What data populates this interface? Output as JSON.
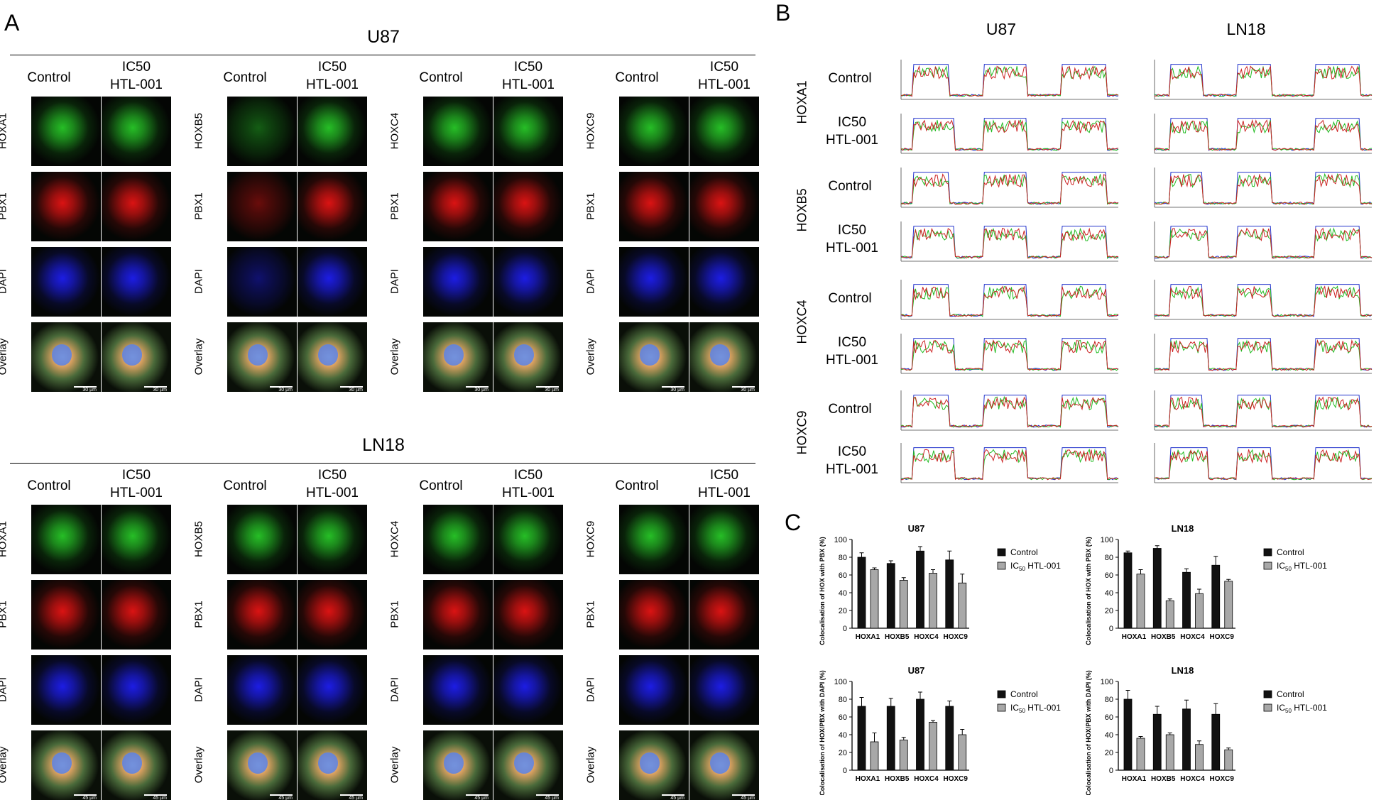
{
  "panel_a": {
    "letter": "A",
    "blocks": [
      {
        "title": "U87",
        "scale": "30 µm"
      },
      {
        "title": "LN18",
        "scale": "45 µm"
      }
    ],
    "col_control": "Control",
    "col_treated_line1": "IC50",
    "col_treated_line2": "HTL-001",
    "genes": [
      "HOXA1",
      "HOXB5",
      "HOXC4",
      "HOXC9"
    ],
    "rows": [
      "PBX1",
      "DAPI",
      "Overlay"
    ]
  },
  "panel_b": {
    "letter": "B",
    "cells": [
      "U87",
      "LN18"
    ],
    "genes": [
      "HOXA1",
      "HOXB5",
      "HOXC4",
      "HOXC9"
    ],
    "control": "Control",
    "treated_line1": "IC50",
    "treated_line2": "HTL-001"
  },
  "panel_c": {
    "letter": "C",
    "legend_control": "Control",
    "legend_ic": "IC",
    "legend_sub": "50",
    "legend_rest": " HTL-001",
    "colors": {
      "control": "#111111",
      "ic50": "#a8a8a8"
    }
  },
  "chart_data": [
    {
      "type": "bar",
      "title": "U87",
      "ylabel": "Colocalisation of HOX with PBX (%)",
      "ylim": [
        0,
        100
      ],
      "ticks": [
        0,
        20,
        40,
        60,
        80,
        100
      ],
      "categories": [
        "HOXA1",
        "HOXB5",
        "HOXC4",
        "HOXC9"
      ],
      "series": [
        {
          "name": "Control",
          "values": [
            80,
            73,
            87,
            77
          ],
          "errors": [
            5,
            3,
            5,
            10
          ]
        },
        {
          "name": "IC50 HTL-001",
          "values": [
            66,
            54,
            62,
            51
          ],
          "errors": [
            2,
            3,
            4,
            10
          ]
        }
      ]
    },
    {
      "type": "bar",
      "title": "LN18",
      "ylabel": "Colocalisation of HOX with PBX (%)",
      "ylim": [
        0,
        100
      ],
      "ticks": [
        0,
        20,
        40,
        60,
        80,
        100
      ],
      "categories": [
        "HOXA1",
        "HOXB5",
        "HOXC4",
        "HOXC9"
      ],
      "series": [
        {
          "name": "Control",
          "values": [
            85,
            90,
            63,
            71
          ],
          "errors": [
            2,
            3,
            4,
            10
          ]
        },
        {
          "name": "IC50 HTL-001",
          "values": [
            61,
            31,
            39,
            53
          ],
          "errors": [
            5,
            2,
            5,
            2
          ]
        }
      ]
    },
    {
      "type": "bar",
      "title": "U87",
      "ylabel": "Colocalisation of HOX/PBX with DAPI (%)",
      "ylim": [
        0,
        100
      ],
      "ticks": [
        0,
        20,
        40,
        60,
        80,
        100
      ],
      "categories": [
        "HOXA1",
        "HOXB5",
        "HOXC4",
        "HOXC9"
      ],
      "series": [
        {
          "name": "Control",
          "values": [
            72,
            72,
            80,
            72
          ],
          "errors": [
            10,
            9,
            8,
            6
          ]
        },
        {
          "name": "IC50 HTL-001",
          "values": [
            32,
            34,
            54,
            40
          ],
          "errors": [
            10,
            3,
            2,
            6
          ]
        }
      ]
    },
    {
      "type": "bar",
      "title": "LN18",
      "ylabel": "Colocalisation of HOX/PBX with DAPI (%)",
      "ylim": [
        0,
        100
      ],
      "ticks": [
        0,
        20,
        40,
        60,
        80,
        100
      ],
      "categories": [
        "HOXA1",
        "HOXB5",
        "HOXC4",
        "HOXC9"
      ],
      "series": [
        {
          "name": "Control",
          "values": [
            80,
            63,
            69,
            63
          ],
          "errors": [
            10,
            9,
            10,
            12
          ]
        },
        {
          "name": "IC50 HTL-001",
          "values": [
            36,
            40,
            29,
            23
          ],
          "errors": [
            2,
            2,
            4,
            2
          ]
        }
      ]
    }
  ]
}
